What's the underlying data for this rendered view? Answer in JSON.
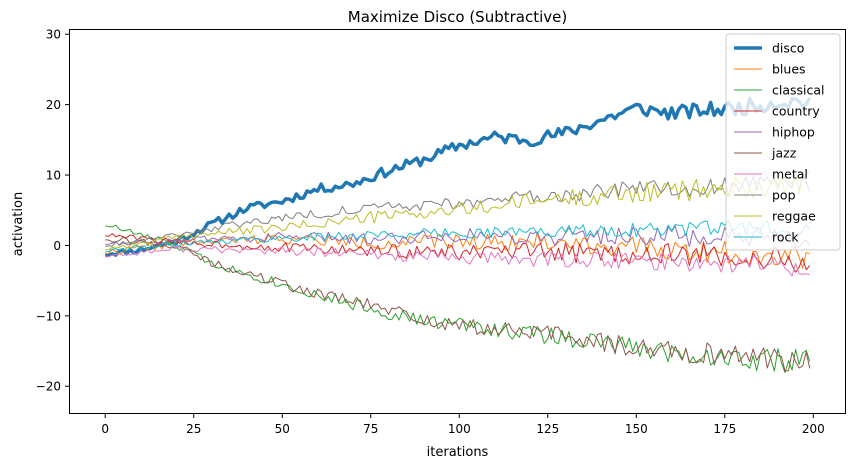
{
  "chart_data": {
    "type": "line",
    "title": "Maximize Disco (Subtractive)",
    "xlabel": "iterations",
    "ylabel": "activation",
    "xlim": [
      -9.95,
      208.95
    ],
    "ylim": [
      -23.8,
      30.6
    ],
    "xticks": [
      0,
      25,
      50,
      75,
      100,
      125,
      150,
      175,
      200
    ],
    "yticks": [
      -20,
      -10,
      0,
      10,
      20,
      30
    ],
    "grid": false,
    "legend_position": "top-right",
    "n_points": 200,
    "x_start": 0,
    "x_step": 1,
    "series": [
      {
        "name": "disco",
        "color": "#1f77b4",
        "linewidth": 3.5,
        "keypoints": [
          [
            0,
            -1.2
          ],
          [
            10,
            -0.6
          ],
          [
            20,
            0.6
          ],
          [
            30,
            3.0
          ],
          [
            40,
            5.3
          ],
          [
            50,
            6.3
          ],
          [
            60,
            8.0
          ],
          [
            70,
            8.8
          ],
          [
            80,
            10.6
          ],
          [
            90,
            12.2
          ],
          [
            100,
            14.2
          ],
          [
            110,
            15.4
          ],
          [
            120,
            15.0
          ],
          [
            130,
            16.0
          ],
          [
            140,
            17.8
          ],
          [
            150,
            19.5
          ],
          [
            160,
            18.8
          ],
          [
            170,
            19.2
          ],
          [
            180,
            19.6
          ],
          [
            190,
            20.4
          ],
          [
            199,
            20.5
          ]
        ],
        "noise": [
          0.4,
          1.2
        ],
        "seed": 11
      },
      {
        "name": "blues",
        "color": "#ff7f0e",
        "linewidth": 1,
        "keypoints": [
          [
            0,
            -1.0
          ],
          [
            25,
            0.5
          ],
          [
            50,
            1.0
          ],
          [
            75,
            0.3
          ],
          [
            100,
            0.6
          ],
          [
            125,
            0.5
          ],
          [
            150,
            -0.3
          ],
          [
            175,
            -1.0
          ],
          [
            199,
            -1.5
          ]
        ],
        "noise": [
          0.4,
          1.8
        ],
        "seed": 22
      },
      {
        "name": "classical",
        "color": "#2ca02c",
        "linewidth": 1,
        "keypoints": [
          [
            0,
            3.0
          ],
          [
            10,
            1.5
          ],
          [
            20,
            0
          ],
          [
            30,
            -2.5
          ],
          [
            40,
            -4.0
          ],
          [
            50,
            -5.5
          ],
          [
            60,
            -7.0
          ],
          [
            75,
            -9.0
          ],
          [
            90,
            -10.8
          ],
          [
            100,
            -11.2
          ],
          [
            125,
            -12.8
          ],
          [
            150,
            -14.5
          ],
          [
            175,
            -16.0
          ],
          [
            199,
            -16.5
          ]
        ],
        "noise": [
          0.4,
          1.8
        ],
        "seed": 33
      },
      {
        "name": "country",
        "color": "#d62728",
        "linewidth": 1,
        "keypoints": [
          [
            0,
            1.5
          ],
          [
            20,
            0.5
          ],
          [
            50,
            -0.3
          ],
          [
            75,
            -0.8
          ],
          [
            100,
            -1.0
          ],
          [
            125,
            -1.0
          ],
          [
            150,
            -1.2
          ],
          [
            175,
            -1.5
          ],
          [
            199,
            -2.5
          ]
        ],
        "noise": [
          0.3,
          2.0
        ],
        "seed": 44
      },
      {
        "name": "hiphop",
        "color": "#9467bd",
        "linewidth": 1,
        "keypoints": [
          [
            0,
            0.3
          ],
          [
            25,
            0.8
          ],
          [
            50,
            1.2
          ],
          [
            75,
            1.0
          ],
          [
            100,
            1.5
          ],
          [
            125,
            1.2
          ],
          [
            150,
            1.5
          ],
          [
            175,
            1.0
          ],
          [
            199,
            0.5
          ]
        ],
        "noise": [
          0.3,
          1.8
        ],
        "seed": 55
      },
      {
        "name": "jazz",
        "color": "#8c564b",
        "linewidth": 1,
        "keypoints": [
          [
            0,
            1.0
          ],
          [
            20,
            0
          ],
          [
            30,
            -2.5
          ],
          [
            40,
            -4.0
          ],
          [
            50,
            -5.5
          ],
          [
            60,
            -6.8
          ],
          [
            75,
            -8.5
          ],
          [
            90,
            -10.5
          ],
          [
            100,
            -11.5
          ],
          [
            125,
            -12.5
          ],
          [
            150,
            -14.5
          ],
          [
            175,
            -15.5
          ],
          [
            199,
            -16.5
          ]
        ],
        "noise": [
          0.4,
          1.8
        ],
        "seed": 66
      },
      {
        "name": "metal",
        "color": "#e377c2",
        "linewidth": 1,
        "keypoints": [
          [
            0,
            -1.5
          ],
          [
            20,
            -0.5
          ],
          [
            50,
            -0.8
          ],
          [
            75,
            -1.3
          ],
          [
            100,
            -1.8
          ],
          [
            125,
            -2.0
          ],
          [
            150,
            -2.2
          ],
          [
            175,
            -2.5
          ],
          [
            199,
            -3.0
          ]
        ],
        "noise": [
          0.3,
          1.6
        ],
        "seed": 77
      },
      {
        "name": "pop",
        "color": "#7f7f7f",
        "linewidth": 1,
        "keypoints": [
          [
            0,
            0
          ],
          [
            25,
            2.0
          ],
          [
            50,
            4.0
          ],
          [
            75,
            5.3
          ],
          [
            100,
            6.0
          ],
          [
            125,
            7.0
          ],
          [
            150,
            8.0
          ],
          [
            175,
            8.3
          ],
          [
            199,
            9.0
          ]
        ],
        "noise": [
          0.3,
          1.5
        ],
        "seed": 88
      },
      {
        "name": "reggae",
        "color": "#bcbd22",
        "linewidth": 1,
        "keypoints": [
          [
            0,
            -0.5
          ],
          [
            25,
            1.5
          ],
          [
            50,
            2.5
          ],
          [
            75,
            4.0
          ],
          [
            100,
            5.0
          ],
          [
            125,
            6.5
          ],
          [
            150,
            7.5
          ],
          [
            175,
            8.0
          ],
          [
            199,
            9.0
          ]
        ],
        "noise": [
          0.3,
          1.8
        ],
        "seed": 99
      },
      {
        "name": "rock",
        "color": "#17becf",
        "linewidth": 1,
        "keypoints": [
          [
            0,
            -0.8
          ],
          [
            25,
            0.5
          ],
          [
            50,
            1.0
          ],
          [
            75,
            1.5
          ],
          [
            100,
            1.8
          ],
          [
            125,
            2.0
          ],
          [
            150,
            2.2
          ],
          [
            175,
            2.5
          ],
          [
            199,
            2.5
          ]
        ],
        "noise": [
          0.3,
          1.2
        ],
        "seed": 111
      }
    ]
  }
}
